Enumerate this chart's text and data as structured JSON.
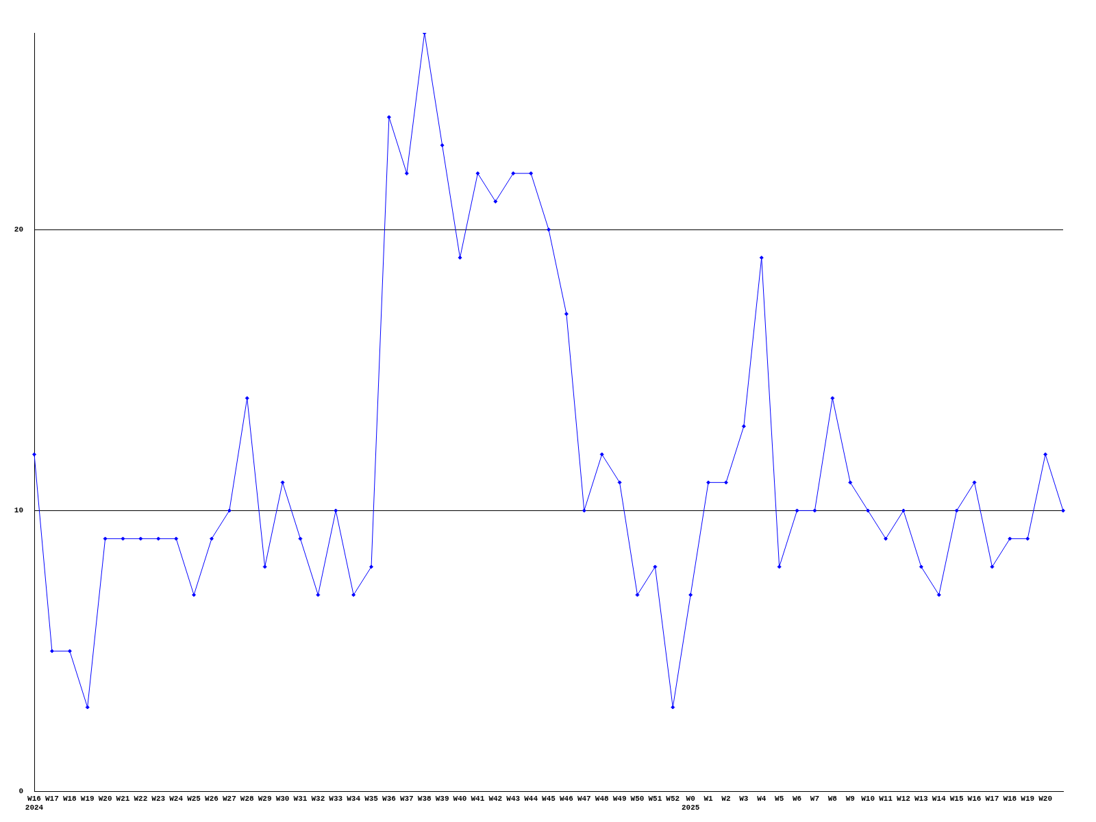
{
  "chart_data": {
    "type": "line",
    "categories": [
      "W16\n2024",
      "W17",
      "W18",
      "W19",
      "W20",
      "W21",
      "W22",
      "W23",
      "W24",
      "W25",
      "W26",
      "W27",
      "W28",
      "W29",
      "W30",
      "W31",
      "W32",
      "W33",
      "W34",
      "W35",
      "W36",
      "W37",
      "W38",
      "W39",
      "W40",
      "W41",
      "W42",
      "W43",
      "W44",
      "W45",
      "W46",
      "W47",
      "W48",
      "W49",
      "W50",
      "W51",
      "W52",
      "W0\n2025",
      "W1",
      "W2",
      "W3",
      "W4",
      "W5",
      "W6",
      "W7",
      "W8",
      "W9",
      "W10",
      "W11",
      "W12",
      "W13",
      "W14",
      "W15",
      "W16",
      "W17",
      "W18",
      "W19",
      "W20",
      null
    ],
    "series": [
      {
        "color": "#0000ff",
        "values": [
          12,
          5,
          5,
          3,
          9,
          9,
          9,
          9,
          9,
          7,
          9,
          10,
          14,
          8,
          11,
          9,
          7,
          10,
          7,
          8,
          24,
          22,
          27,
          23,
          19,
          22,
          21,
          22,
          22,
          20,
          17,
          10,
          12,
          11,
          7,
          8,
          3,
          7,
          11,
          11,
          13,
          19,
          8,
          10,
          10,
          14,
          11,
          10,
          9,
          10,
          8,
          7,
          10,
          11,
          8,
          9,
          9,
          12,
          10
        ]
      }
    ],
    "ylim": [
      0,
      27
    ],
    "yticks": [
      0,
      10,
      20
    ],
    "grid": "y",
    "marker": "diamond",
    "line_style": "solid",
    "legend": false
  }
}
